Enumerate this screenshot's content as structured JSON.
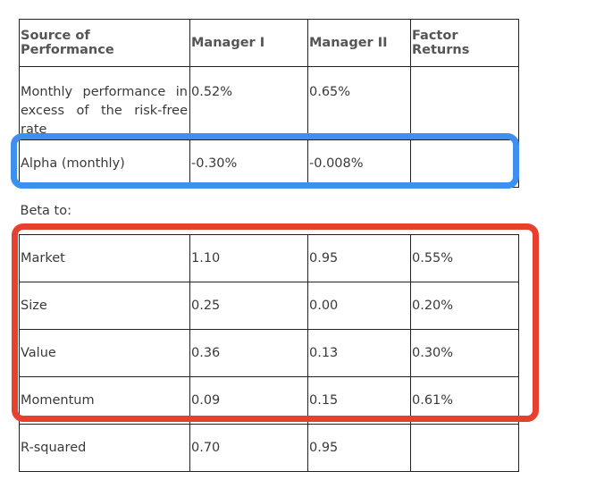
{
  "table": {
    "headers": [
      "Source of Performance",
      "Manager I",
      "Manager II",
      "Factor Returns"
    ],
    "rows": {
      "excess": {
        "label": "Monthly performance in excess of the risk-free rate",
        "m1": "0.52%",
        "m2": "0.65%",
        "factor": ""
      },
      "alpha": {
        "label": "Alpha (monthly)",
        "m1": "-0.30%",
        "m2": "-0.008%",
        "factor": ""
      },
      "beta_heading": "Beta to:",
      "market": {
        "label": "Market",
        "m1": "1.10",
        "m2": "0.95",
        "factor": "0.55%"
      },
      "size": {
        "label": "Size",
        "m1": "0.25",
        "m2": "0.00",
        "factor": "0.20%"
      },
      "value": {
        "label": "Value",
        "m1": "0.36",
        "m2": "0.13",
        "factor": "0.30%"
      },
      "momentum": {
        "label": "Momentum",
        "m1": "0.09",
        "m2": "0.15",
        "factor": "0.61%"
      },
      "rsquared": {
        "label": "R-squared",
        "m1": "0.70",
        "m2": "0.95",
        "factor": ""
      }
    }
  },
  "highlights": {
    "alpha_box_color": "#3d8ff0",
    "beta_box_color": "#e8402e"
  }
}
